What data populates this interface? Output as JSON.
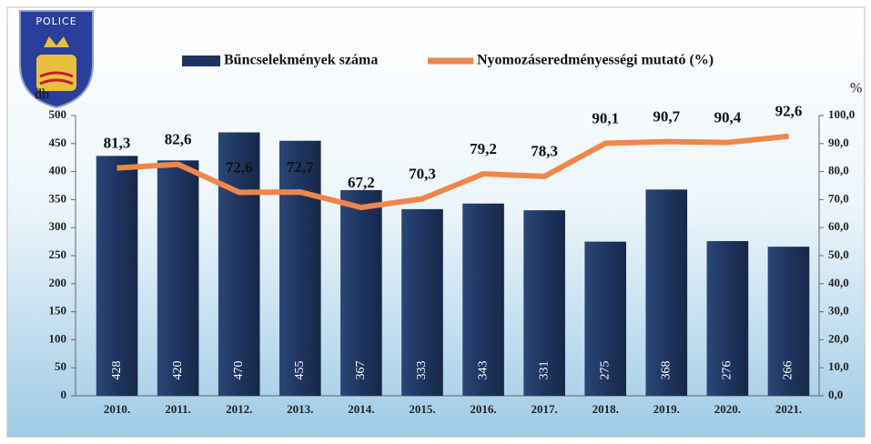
{
  "logo": {
    "text": "POLICE"
  },
  "chart_data": {
    "type": "bar_line",
    "categories": [
      "2010.",
      "2011.",
      "2012.",
      "2013.",
      "2014.",
      "2015.",
      "2016.",
      "2017.",
      "2018.",
      "2019.",
      "2020.",
      "2021."
    ],
    "series": [
      {
        "name": "Bűncselekmények száma",
        "color": "#1f3560",
        "type": "bar",
        "values": [
          428,
          420,
          470,
          455,
          367,
          333,
          343,
          331,
          275,
          368,
          276,
          266
        ]
      },
      {
        "name": "Nyomozáseredményességi mutató (%)",
        "color": "#f0864a",
        "type": "line",
        "axis": "y2",
        "values": [
          81.3,
          82.6,
          72.6,
          72.7,
          67.2,
          70.3,
          79.2,
          78.3,
          90.1,
          90.7,
          90.4,
          92.6
        ],
        "value_labels": [
          "81,3",
          "82,6",
          "72,6",
          "72,7",
          "67,2",
          "70,3",
          "79,2",
          "78,3",
          "90,1",
          "90,7",
          "90,4",
          "92,6"
        ]
      }
    ],
    "y_label": "db",
    "y2_label": "%",
    "ylim": [
      0,
      500
    ],
    "yticks": [
      0,
      50,
      100,
      150,
      200,
      250,
      300,
      350,
      400,
      450,
      500
    ],
    "y2lim": [
      0,
      100
    ],
    "y2ticks": [
      {
        "value": 0,
        "label": "0,0"
      },
      {
        "value": 10,
        "label": "10,0"
      },
      {
        "value": 20,
        "label": "20,0"
      },
      {
        "value": 30,
        "label": "30,0"
      },
      {
        "value": 40,
        "label": "40,0"
      },
      {
        "value": 50,
        "label": "50,0"
      },
      {
        "value": 60,
        "label": "60,0"
      },
      {
        "value": 70,
        "label": "70,0"
      },
      {
        "value": 80,
        "label": "80,0"
      },
      {
        "value": 90,
        "label": "90,0"
      },
      {
        "value": 100,
        "label": "100,0"
      }
    ],
    "legend": "top"
  }
}
